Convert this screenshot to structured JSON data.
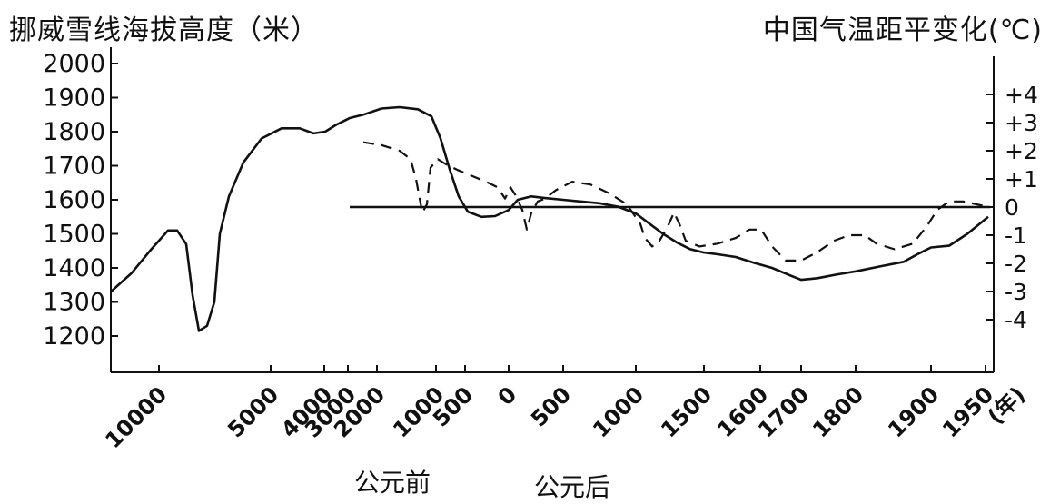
{
  "chart_data": {
    "type": "line",
    "title_left": "挪威雪线海拔高度（米）",
    "title_right": "中国气温距平变化(℃)",
    "y_left": {
      "ticks": [
        "1200",
        "1300",
        "1400",
        "1500",
        "1600",
        "1700",
        "1800",
        "1900",
        "2000"
      ],
      "lim": [
        1150,
        2050
      ]
    },
    "y_right": {
      "ticks": [
        "+4",
        "+3",
        "+2",
        "+1",
        "0",
        "-1",
        "-2",
        "-3",
        "-4"
      ],
      "lim": [
        -4,
        4
      ]
    },
    "x_tick_labels": [
      "10000",
      "5000",
      "4000",
      "3000",
      "2000",
      "1000",
      "500",
      "0",
      "500",
      "1000",
      "1500",
      "1600",
      "1700",
      "1800",
      "1900",
      "1950",
      "(年)"
    ],
    "era_labels": {
      "bce": "公元前",
      "ce": "公元后"
    },
    "series": [
      {
        "style": "solid",
        "x_labels": [
          "10000",
          "5000",
          "3000",
          "2000",
          "1000",
          "500",
          "0",
          "500",
          "1000",
          "1500",
          "1700",
          "1900",
          "1950"
        ],
        "values": [
          1330,
          1780,
          1800,
          1850,
          1870,
          1560,
          1555,
          1610,
          1585,
          1450,
          1365,
          1460,
          1550
        ]
      },
      {
        "style": "dashed",
        "x_labels": [
          "2000",
          "1000",
          "500",
          "0",
          "500",
          "1000",
          "1500",
          "1600",
          "1700",
          "1800",
          "1900",
          "1950"
        ],
        "values": [
          2.2,
          1.8,
          1.5,
          0.7,
          0.5,
          0,
          -1.3,
          -0.8,
          -1.8,
          -1,
          -1.2,
          0.2
        ]
      }
    ]
  }
}
